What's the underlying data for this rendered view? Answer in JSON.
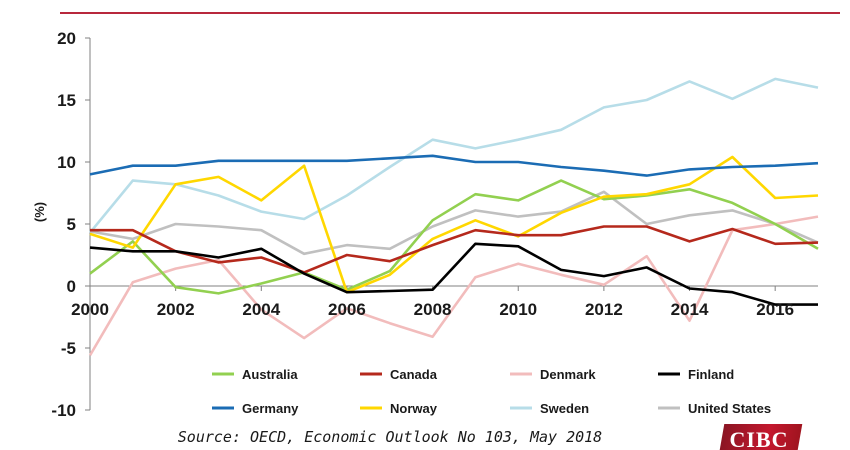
{
  "logo": {
    "text": "CIBC"
  },
  "source": "Source: OECD, Economic Outlook No 103, May 2018",
  "chart_data": {
    "type": "line",
    "title": "",
    "xlabel": "",
    "ylabel": "(%)",
    "xlim": [
      2000,
      2017
    ],
    "ylim": [
      -10,
      20
    ],
    "x_ticks": [
      2000,
      2002,
      2004,
      2006,
      2008,
      2010,
      2012,
      2014,
      2016
    ],
    "y_ticks": [
      -10,
      -5,
      0,
      5,
      10,
      15,
      20
    ],
    "grid": false,
    "legend_position": "bottom",
    "x": [
      2000,
      2001,
      2002,
      2003,
      2004,
      2005,
      2006,
      2007,
      2008,
      2009,
      2010,
      2011,
      2012,
      2013,
      2014,
      2015,
      2016,
      2017
    ],
    "series": [
      {
        "name": "Australia",
        "color": "#92d050",
        "values": [
          1.0,
          3.6,
          -0.1,
          -0.6,
          0.2,
          1.1,
          -0.3,
          1.2,
          5.3,
          7.4,
          6.9,
          8.5,
          7.0,
          7.3,
          7.8,
          6.7,
          5.0,
          3.0
        ]
      },
      {
        "name": "Canada",
        "color": "#b5291c",
        "values": [
          4.5,
          4.5,
          2.8,
          1.9,
          2.3,
          1.1,
          2.5,
          2.0,
          3.3,
          4.5,
          4.1,
          4.1,
          4.8,
          4.8,
          3.6,
          4.6,
          3.4,
          3.5
        ]
      },
      {
        "name": "Denmark",
        "color": "#f2bcbc",
        "values": [
          -5.6,
          0.3,
          1.4,
          2.1,
          -1.9,
          -4.2,
          -1.8,
          -3.0,
          -4.1,
          0.7,
          1.8,
          0.9,
          0.1,
          2.4,
          -2.8,
          4.5,
          5.0,
          5.6
        ]
      },
      {
        "name": "Finland",
        "color": "#000000",
        "values": [
          3.1,
          2.8,
          2.8,
          2.3,
          3.0,
          1.0,
          -0.5,
          -0.4,
          -0.3,
          3.4,
          3.2,
          1.3,
          0.8,
          1.5,
          -0.2,
          -0.5,
          -1.5,
          -1.5
        ]
      },
      {
        "name": "Germany",
        "color": "#1b6cb4",
        "values": [
          9.0,
          9.7,
          9.7,
          10.1,
          10.1,
          10.1,
          10.1,
          10.3,
          10.5,
          10.0,
          10.0,
          9.6,
          9.3,
          8.9,
          9.4,
          9.6,
          9.7,
          9.9
        ]
      },
      {
        "name": "Norway",
        "color": "#ffd700",
        "values": [
          4.2,
          3.1,
          8.2,
          8.8,
          6.9,
          9.7,
          -0.5,
          0.9,
          3.8,
          5.3,
          4.0,
          5.9,
          7.2,
          7.4,
          8.2,
          10.4,
          7.1,
          7.3
        ]
      },
      {
        "name": "Sweden",
        "color": "#b7dde8",
        "values": [
          4.3,
          8.5,
          8.2,
          7.3,
          6.0,
          5.4,
          7.3,
          9.6,
          11.8,
          11.1,
          11.8,
          12.6,
          14.4,
          15.0,
          16.5,
          15.1,
          16.7,
          16.0
        ]
      },
      {
        "name": "United States",
        "color": "#c0c0c0",
        "values": [
          4.4,
          3.8,
          5.0,
          4.8,
          4.5,
          2.6,
          3.3,
          3.0,
          4.8,
          6.1,
          5.6,
          6.0,
          7.6,
          5.0,
          5.7,
          6.1,
          5.0,
          3.5
        ]
      }
    ]
  }
}
